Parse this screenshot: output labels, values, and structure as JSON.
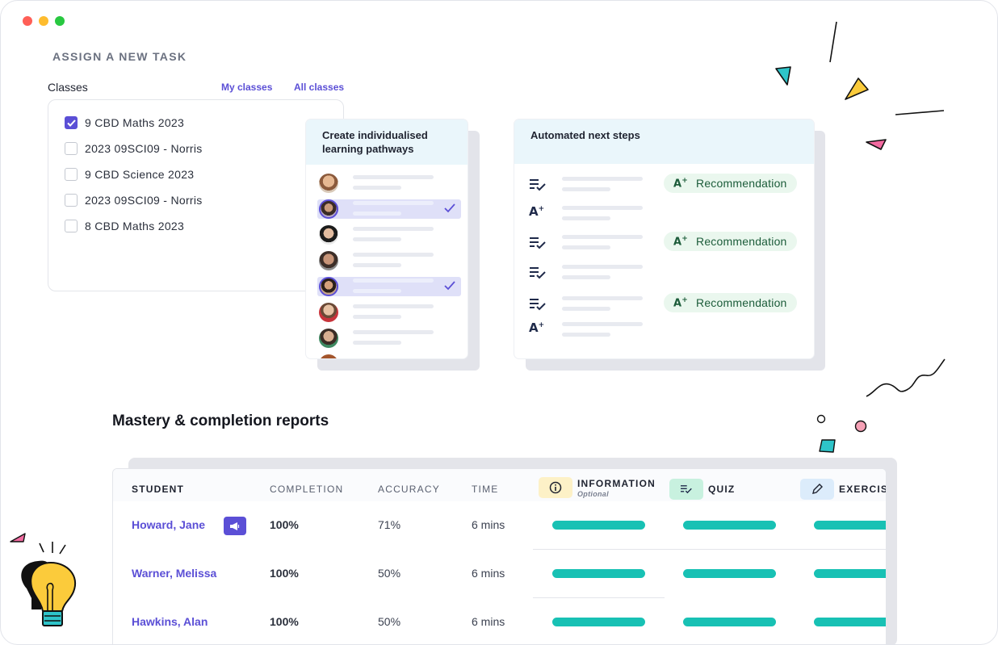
{
  "window": {
    "controls": [
      "close",
      "minimize",
      "maximize"
    ],
    "colors": {
      "close": "#ff5f57",
      "minimize": "#febc2e",
      "maximize": "#28c840"
    }
  },
  "assign": {
    "title": "ASSIGN A NEW TASK",
    "classes_label": "Classes",
    "tabs": [
      {
        "label": "My classes",
        "active": true
      },
      {
        "label": "All classes",
        "active": false
      }
    ],
    "classes": [
      {
        "name": "9 CBD Maths 2023",
        "checked": true
      },
      {
        "name": "2023 09SCI09 - Norris",
        "checked": false
      },
      {
        "name": "9 CBD Science 2023",
        "checked": false
      },
      {
        "name": "2023 09SCI09 - Norris",
        "checked": false
      },
      {
        "name": "8 CBD Maths 2023",
        "checked": false
      }
    ]
  },
  "pathways": {
    "title": "Create individualised learning pathways",
    "students": [
      {
        "avatar": "student-1",
        "selected": false
      },
      {
        "avatar": "student-2",
        "selected": true
      },
      {
        "avatar": "student-3",
        "selected": false
      },
      {
        "avatar": "student-4",
        "selected": false
      },
      {
        "avatar": "student-5",
        "selected": true
      },
      {
        "avatar": "student-6",
        "selected": false
      },
      {
        "avatar": "student-7",
        "selected": false
      },
      {
        "avatar": "student-8",
        "selected": false
      }
    ]
  },
  "next_steps": {
    "title": "Automated next steps",
    "rows": [
      {
        "icon": "quiz-icon",
        "recommendation": "Recommendation"
      },
      {
        "icon": "a-plus-icon",
        "recommendation": null
      },
      {
        "icon": "quiz-icon",
        "recommendation": "Recommendation"
      },
      {
        "icon": "quiz-icon",
        "recommendation": null
      },
      {
        "icon": "quiz-icon",
        "recommendation": "Recommendation"
      },
      {
        "icon": "a-plus-icon",
        "recommendation": null
      }
    ],
    "a_plus_label": "A",
    "a_plus_sup": "+"
  },
  "reports": {
    "title": "Mastery & completion reports",
    "columns": {
      "student": "STUDENT",
      "completion": "COMPLETION",
      "accuracy": "ACCURACY",
      "time": "TIME",
      "information": "INFORMATION",
      "information_sub": "Optional",
      "quiz": "QUIZ",
      "exercise": "EXERCISE"
    },
    "rows": [
      {
        "student": "Howard, Jane",
        "completion": "100%",
        "accuracy": "71%",
        "time": "6 mins",
        "has_badge": true
      },
      {
        "student": "Warner, Melissa",
        "completion": "100%",
        "accuracy": "50%",
        "time": "6 mins",
        "has_badge": false
      },
      {
        "student": "Hawkins, Alan",
        "completion": "100%",
        "accuracy": "50%",
        "time": "6 mins",
        "has_badge": false
      }
    ],
    "progress_color": "#18c1b4"
  },
  "colors": {
    "accent": "#5b4fd6",
    "teal": "#18c1b4",
    "card_header": "#eaf6fb",
    "recommendation_bg": "#eaf7ee",
    "info_chip": "#fdf1c7",
    "quiz_chip": "#c8f1df",
    "exercise_chip": "#dcecfb"
  }
}
